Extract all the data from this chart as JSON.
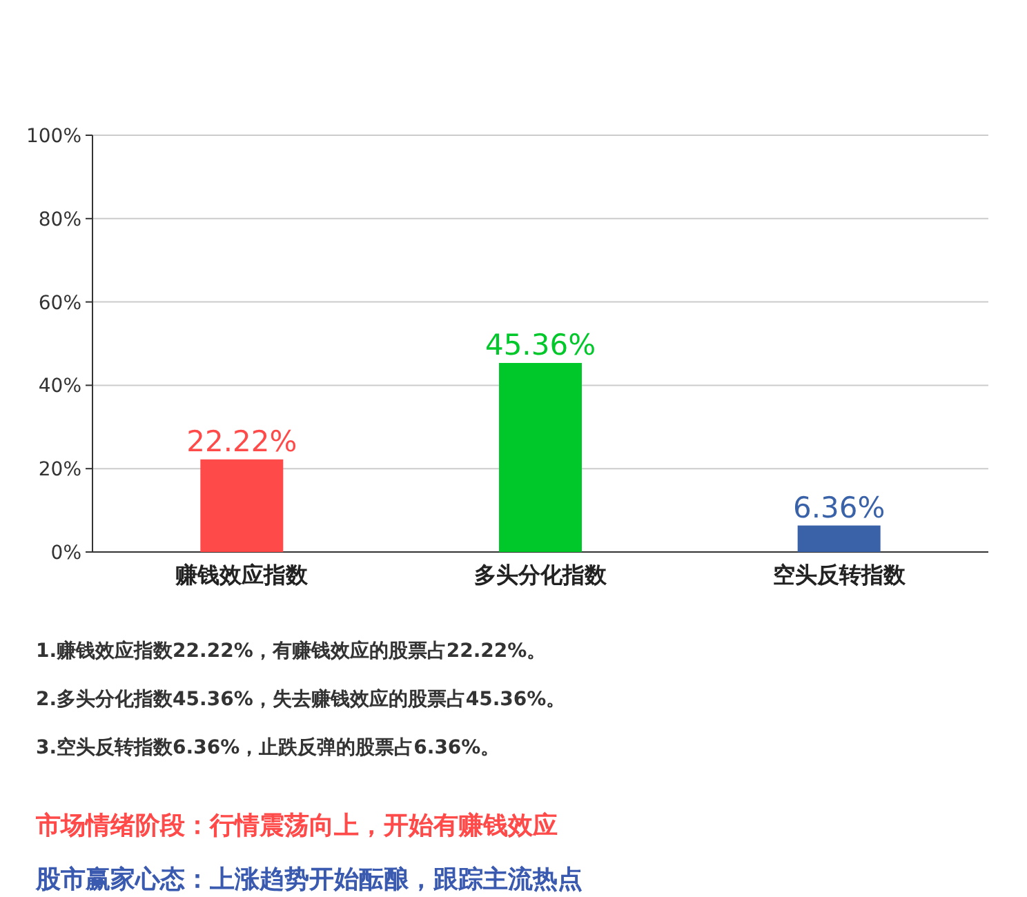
{
  "chart_data": {
    "type": "bar",
    "categories": [
      "赚钱效应指数",
      "多头分化指数",
      "空头反转指数"
    ],
    "values": [
      22.22,
      45.36,
      6.36
    ],
    "colors": [
      "#ff4a4a",
      "#00c82a",
      "#3a62a8"
    ],
    "value_labels": [
      "22.22%",
      "45.36%",
      "6.36%"
    ],
    "ylim": [
      0,
      100
    ],
    "yticks": [
      {
        "value": 0,
        "label": "0%"
      },
      {
        "value": 20,
        "label": "20%"
      },
      {
        "value": 40,
        "label": "40%"
      },
      {
        "value": 60,
        "label": "60%"
      },
      {
        "value": 80,
        "label": "80%"
      },
      {
        "value": 100,
        "label": "100%"
      }
    ],
    "grid": "y",
    "annotations": [
      "1.赚钱效应指数22.22%，有赚钱效应的股票占22.22%。",
      "2.多头分化指数45.36%，失去赚钱效应的股票占45.36%。",
      "3.空头反转指数6.36%，止跌反弹的股票占6.36%。",
      "市场情绪阶段：行情震荡向上，开始有赚钱效应",
      "股市赢家心态：上涨趋势开始酝酿，跟踪主流热点"
    ]
  }
}
